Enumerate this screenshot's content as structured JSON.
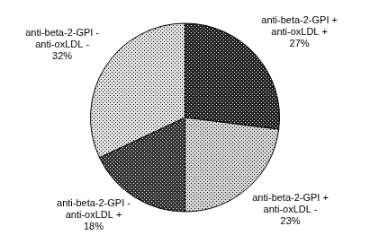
{
  "chart_data": {
    "type": "pie",
    "categories": [
      "anti-beta-2-GPI +\nanti-oxLDL +",
      "anti-beta-2-GPI +\nanti-oxLDL -",
      "anti-beta-2-GPI -\nanti-oxLDL +",
      "anti-beta-2-GPI -\nanti-oxLDL -"
    ],
    "values": [
      27,
      23,
      18,
      32
    ],
    "value_labels": [
      "27%",
      "23%",
      "18%",
      "32%"
    ],
    "colors": [
      "#1e1e1e",
      "#d8d8d8",
      "#2e2e2e",
      "#e4e4e4"
    ],
    "data_labels": true
  }
}
